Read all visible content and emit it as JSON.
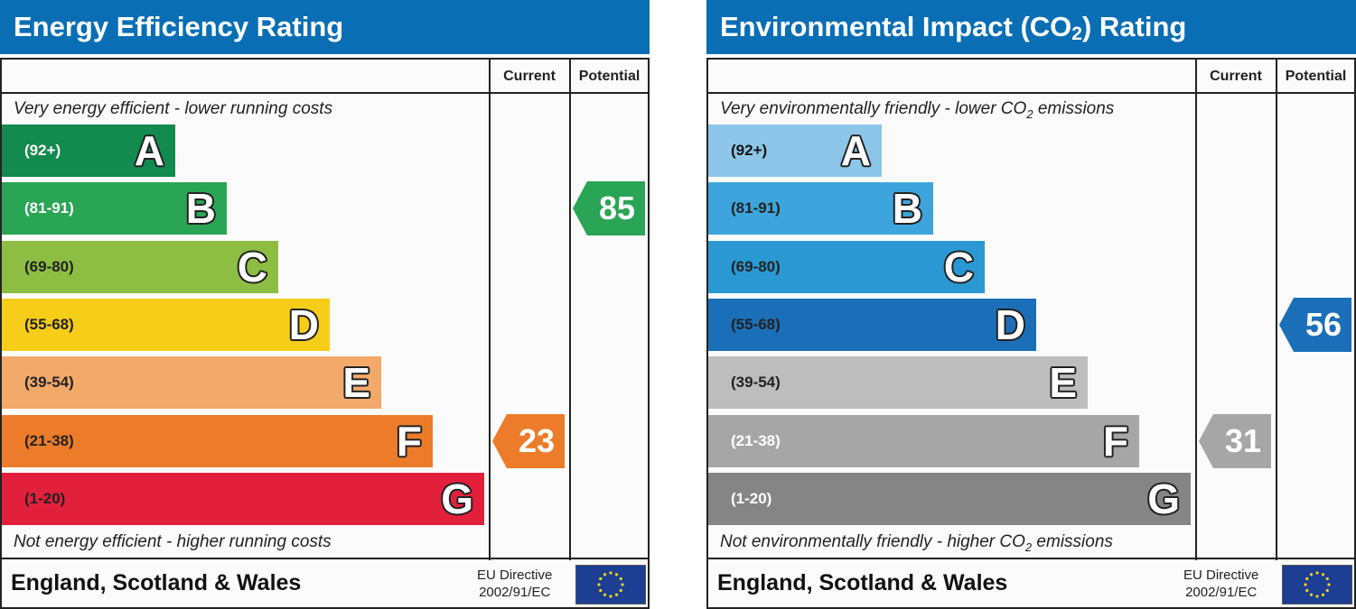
{
  "chart_data": [
    {
      "type": "bar",
      "title": "Energy Efficiency Rating",
      "columns": [
        "Current",
        "Potential"
      ],
      "top_caption": "Very energy efficient - lower running costs",
      "bottom_caption": "Not energy efficient - higher running costs",
      "bands": [
        {
          "range": "(92+)",
          "letter": "A",
          "color": "#138a4e",
          "text_color": "#ffffff"
        },
        {
          "range": "(81-91)",
          "letter": "B",
          "color": "#2aa455",
          "text_color": "#ffffff"
        },
        {
          "range": "(69-80)",
          "letter": "C",
          "color": "#8dbe43",
          "text_color": "#222222"
        },
        {
          "range": "(55-68)",
          "letter": "D",
          "color": "#f6cd18",
          "text_color": "#222222"
        },
        {
          "range": "(39-54)",
          "letter": "E",
          "color": "#f2a96a",
          "text_color": "#222222"
        },
        {
          "range": "(21-38)",
          "letter": "F",
          "color": "#ec7c2a",
          "text_color": "#222222"
        },
        {
          "range": "(1-20)",
          "letter": "G",
          "color": "#e2203c",
          "text_color": "#222222"
        }
      ],
      "current": {
        "value": 23,
        "band": "F",
        "color": "#ec7c2a"
      },
      "potential": {
        "value": 85,
        "band": "B",
        "color": "#2aa455"
      },
      "footer": {
        "country": "England, Scotland & Wales",
        "directive_line1": "EU Directive",
        "directive_line2": "2002/91/EC"
      }
    },
    {
      "type": "bar",
      "title_main": "Environmental Impact (CO",
      "title_sub": "2",
      "title_end": ") Rating",
      "columns": [
        "Current",
        "Potential"
      ],
      "top_caption_main": "Very environmentally friendly - lower CO",
      "top_caption_sub": "2",
      "top_caption_end": " emissions",
      "bottom_caption_main": "Not environmentally friendly - higher CO",
      "bottom_caption_sub": "2",
      "bottom_caption_end": " emissions",
      "bands": [
        {
          "range": "(92+)",
          "letter": "A",
          "color": "#8dc6e8",
          "text_color": "#111111"
        },
        {
          "range": "(81-91)",
          "letter": "B",
          "color": "#3ea5dc",
          "text_color": "#222222"
        },
        {
          "range": "(69-80)",
          "letter": "C",
          "color": "#2a99d3",
          "text_color": "#222222"
        },
        {
          "range": "(55-68)",
          "letter": "D",
          "color": "#1b6fb8",
          "text_color": "#222222"
        },
        {
          "range": "(39-54)",
          "letter": "E",
          "color": "#bdbdbd",
          "text_color": "#222222"
        },
        {
          "range": "(21-38)",
          "letter": "F",
          "color": "#a6a6a6",
          "text_color": "#ffffff"
        },
        {
          "range": "(1-20)",
          "letter": "G",
          "color": "#858585",
          "text_color": "#ffffff"
        }
      ],
      "current": {
        "value": 31,
        "band": "F",
        "color": "#a6a6a6"
      },
      "potential": {
        "value": 56,
        "band": "D",
        "color": "#1b6fb8"
      },
      "footer": {
        "country": "England, Scotland & Wales",
        "directive_line1": "EU Directive",
        "directive_line2": "2002/91/EC"
      }
    }
  ]
}
